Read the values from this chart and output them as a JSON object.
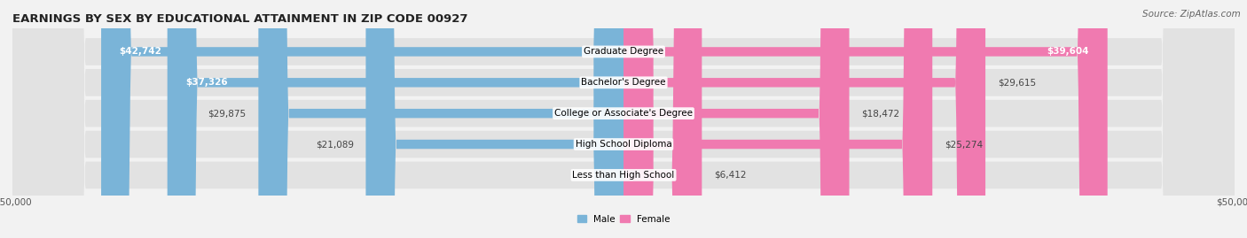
{
  "title": "EARNINGS BY SEX BY EDUCATIONAL ATTAINMENT IN ZIP CODE 00927",
  "source": "Source: ZipAtlas.com",
  "categories": [
    "Less than High School",
    "High School Diploma",
    "College or Associate's Degree",
    "Bachelor's Degree",
    "Graduate Degree"
  ],
  "male_values": [
    0,
    21089,
    29875,
    37326,
    42742
  ],
  "female_values": [
    6412,
    25274,
    18472,
    29615,
    39604
  ],
  "male_color": "#7ab4d8",
  "female_color": "#f07ab0",
  "axis_max": 50000,
  "bg_color": "#f2f2f2",
  "bar_bg_color": "#e2e2e2",
  "title_fontsize": 9.5,
  "source_fontsize": 7.5,
  "label_fontsize": 7.5,
  "category_fontsize": 7.5
}
